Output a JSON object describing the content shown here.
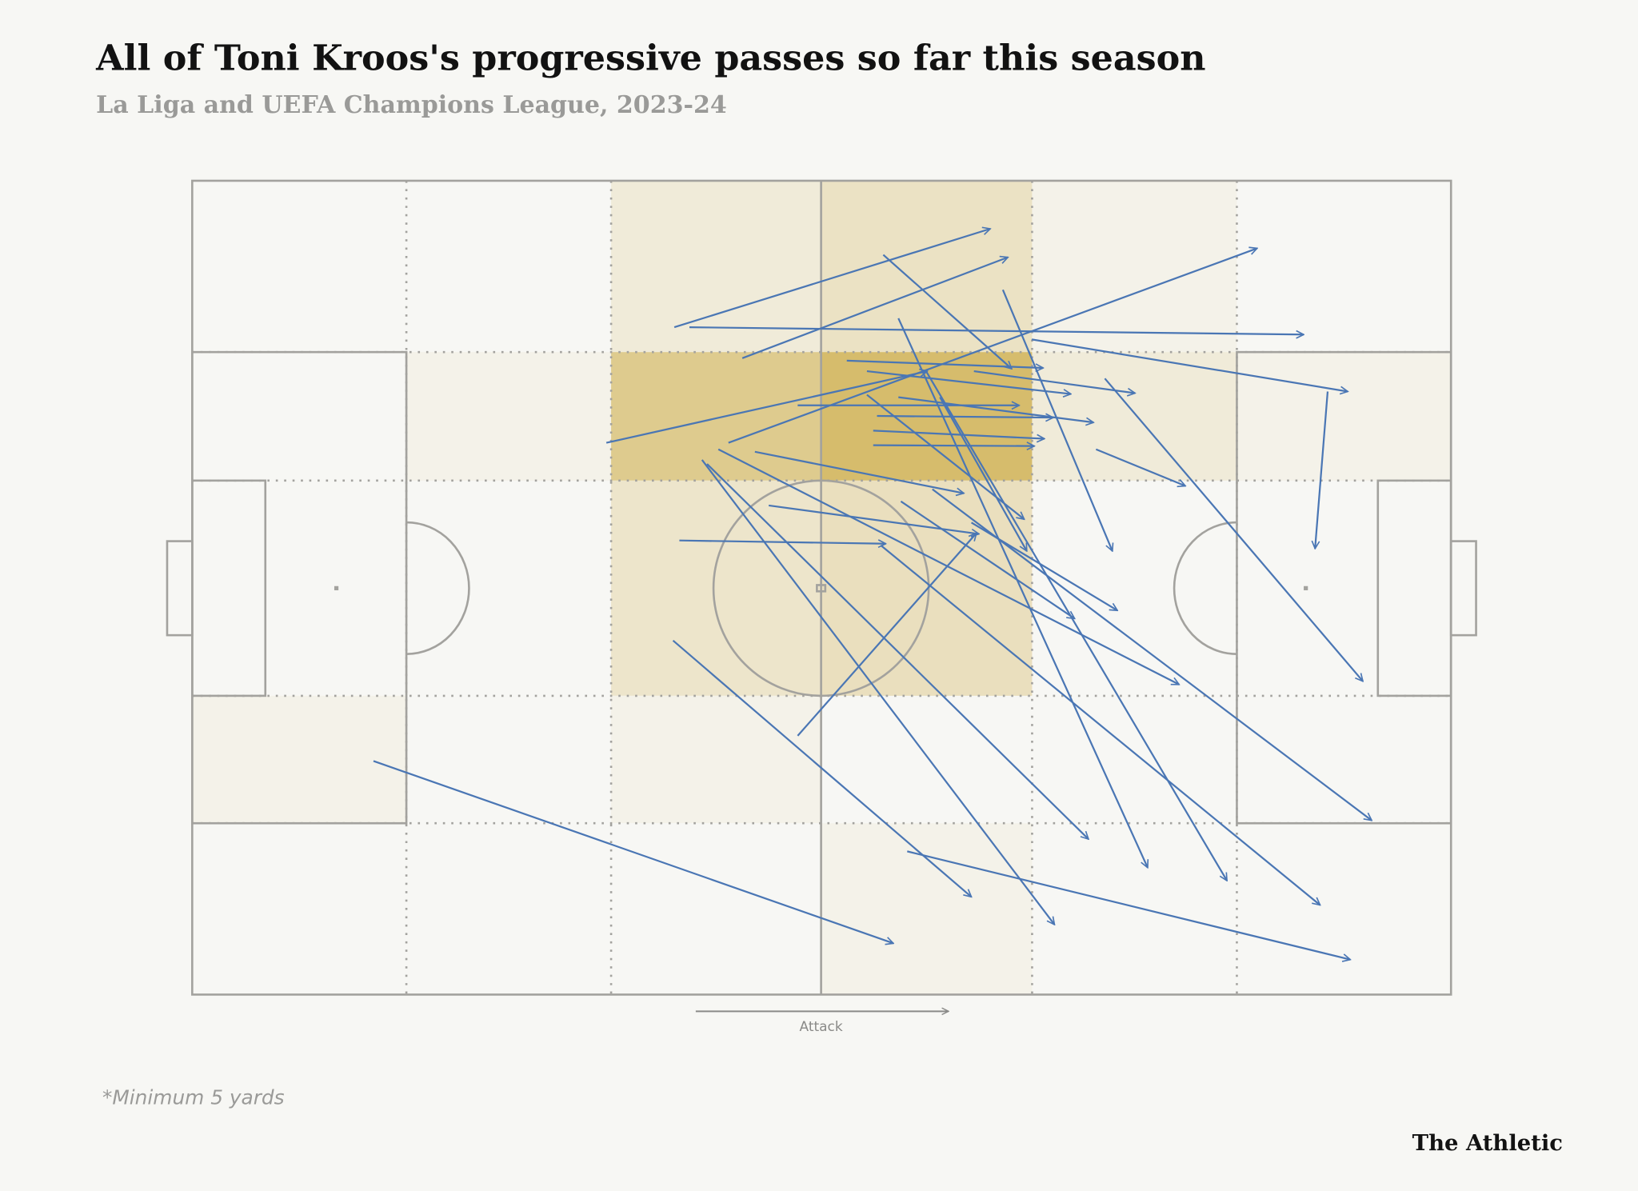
{
  "title": "All of Toni Kroos's progressive passes so far this season",
  "subtitle": "La Liga and UEFA Champions League, 2023-24",
  "footnote": "*Minimum 5 yards",
  "logo": "The Athletic",
  "chart_data": {
    "type": "pass-map",
    "pitch_units": {
      "x": [
        0,
        100
      ],
      "y": [
        0,
        100
      ]
    },
    "attack_direction": "left-to-right",
    "attack_label": "Attack",
    "colors": {
      "pass": "#4a76b4",
      "heat_low": "#f7f7f4",
      "heat_high": "#d6bc6c",
      "pitch_lines": "#a3a29e"
    },
    "zone_heatmap": {
      "columns": 6,
      "rows": 5,
      "intensity": [
        [
          0,
          0,
          0.2,
          0.35,
          0.08,
          0
        ],
        [
          0,
          0.08,
          0.75,
          1.0,
          0.2,
          0.08
        ],
        [
          0,
          0,
          0.3,
          0.4,
          0,
          0
        ],
        [
          0.08,
          0,
          0.08,
          0,
          0,
          0
        ],
        [
          0,
          0,
          0,
          0.08,
          0,
          0
        ]
      ]
    },
    "passes": [
      {
        "x1": 38.3,
        "y1": 18.0,
        "x2": 63.4,
        "y2": 5.9
      },
      {
        "x1": 39.5,
        "y1": 18.0,
        "x2": 88.3,
        "y2": 18.9
      },
      {
        "x1": 43.7,
        "y1": 21.8,
        "x2": 64.8,
        "y2": 9.4
      },
      {
        "x1": 54.9,
        "y1": 9.1,
        "x2": 65.1,
        "y2": 23.1
      },
      {
        "x1": 64.4,
        "y1": 13.4,
        "x2": 73.1,
        "y2": 45.5
      },
      {
        "x1": 32.9,
        "y1": 32.2,
        "x2": 58.4,
        "y2": 23.4
      },
      {
        "x1": 42.6,
        "y1": 32.2,
        "x2": 84.6,
        "y2": 8.3
      },
      {
        "x1": 66.7,
        "y1": 19.5,
        "x2": 91.8,
        "y2": 25.9
      },
      {
        "x1": 52.0,
        "y1": 22.1,
        "x2": 67.6,
        "y2": 23.0
      },
      {
        "x1": 53.6,
        "y1": 23.4,
        "x2": 69.8,
        "y2": 26.2
      },
      {
        "x1": 62.1,
        "y1": 23.4,
        "x2": 74.9,
        "y2": 26.1
      },
      {
        "x1": 48.1,
        "y1": 27.6,
        "x2": 65.7,
        "y2": 27.6
      },
      {
        "x1": 54.4,
        "y1": 28.9,
        "x2": 68.4,
        "y2": 29.1
      },
      {
        "x1": 54.1,
        "y1": 30.7,
        "x2": 67.7,
        "y2": 31.7
      },
      {
        "x1": 54.1,
        "y1": 32.5,
        "x2": 66.9,
        "y2": 32.6
      },
      {
        "x1": 56.1,
        "y1": 26.6,
        "x2": 71.6,
        "y2": 29.7
      },
      {
        "x1": 71.8,
        "y1": 33.0,
        "x2": 78.9,
        "y2": 37.5
      },
      {
        "x1": 72.5,
        "y1": 24.3,
        "x2": 93.0,
        "y2": 61.5
      },
      {
        "x1": 90.2,
        "y1": 25.9,
        "x2": 89.2,
        "y2": 45.2
      },
      {
        "x1": 44.7,
        "y1": 33.3,
        "x2": 61.3,
        "y2": 38.4
      },
      {
        "x1": 45.8,
        "y1": 39.9,
        "x2": 62.5,
        "y2": 43.4
      },
      {
        "x1": 38.7,
        "y1": 44.2,
        "x2": 55.1,
        "y2": 44.6
      },
      {
        "x1": 41.8,
        "y1": 33.0,
        "x2": 78.4,
        "y2": 61.9
      },
      {
        "x1": 56.3,
        "y1": 39.4,
        "x2": 70.1,
        "y2": 53.8
      },
      {
        "x1": 61.9,
        "y1": 42.0,
        "x2": 73.5,
        "y2": 52.8
      },
      {
        "x1": 54.7,
        "y1": 44.8,
        "x2": 89.6,
        "y2": 89.0
      },
      {
        "x1": 40.5,
        "y1": 34.3,
        "x2": 68.5,
        "y2": 91.4
      },
      {
        "x1": 40.9,
        "y1": 34.8,
        "x2": 71.2,
        "y2": 80.9
      },
      {
        "x1": 38.2,
        "y1": 56.5,
        "x2": 61.9,
        "y2": 88.0
      },
      {
        "x1": 48.1,
        "y1": 68.2,
        "x2": 62.3,
        "y2": 43.3
      },
      {
        "x1": 14.4,
        "y1": 71.3,
        "x2": 55.7,
        "y2": 93.7
      },
      {
        "x1": 56.8,
        "y1": 82.4,
        "x2": 92.0,
        "y2": 95.7
      },
      {
        "x1": 56.1,
        "y1": 16.9,
        "x2": 75.9,
        "y2": 84.4
      },
      {
        "x1": 58.3,
        "y1": 23.4,
        "x2": 82.2,
        "y2": 86.0
      },
      {
        "x1": 58.8,
        "y1": 37.9,
        "x2": 93.7,
        "y2": 78.6
      },
      {
        "x1": 59.4,
        "y1": 26.6,
        "x2": 66.3,
        "y2": 45.5
      },
      {
        "x1": 53.6,
        "y1": 26.3,
        "x2": 66.1,
        "y2": 41.6
      }
    ]
  }
}
